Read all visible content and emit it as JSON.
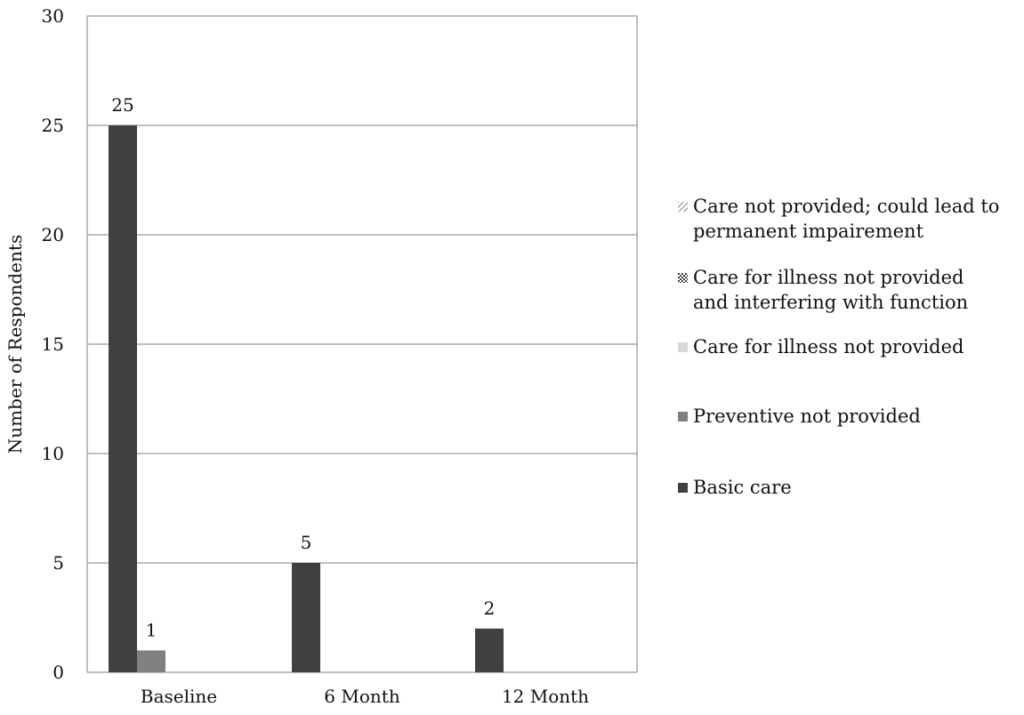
{
  "chart_data": {
    "type": "bar",
    "categories": [
      "Baseline",
      "6 Month",
      "12 Month"
    ],
    "series": [
      {
        "name": "Basic care",
        "values": [
          25,
          5,
          2
        ],
        "color": "#404040",
        "pattern": "solid"
      },
      {
        "name": "Preventive not provided",
        "values": [
          1,
          0,
          0
        ],
        "color": "#808080",
        "pattern": "solid"
      },
      {
        "name": "Care for illness not provided",
        "values": [
          0,
          0,
          0
        ],
        "color": "#d9d9d9",
        "pattern": "solid"
      },
      {
        "name": "Care for illness not provided and interfering with function",
        "values": [
          0,
          0,
          0
        ],
        "color": "#404040",
        "pattern": "checker"
      },
      {
        "name": "Care not provided; could lead to permanent impairement",
        "values": [
          0,
          0,
          0
        ],
        "color": "#808080",
        "pattern": "diagonal"
      }
    ],
    "data_labels": [
      {
        "series": 0,
        "category": 0,
        "text": "25"
      },
      {
        "series": 1,
        "category": 0,
        "text": "1"
      },
      {
        "series": 0,
        "category": 1,
        "text": "5"
      },
      {
        "series": 0,
        "category": 2,
        "text": "2"
      }
    ],
    "title": "",
    "xlabel": "",
    "ylabel": "Number of Respondents",
    "ylim": [
      0,
      30
    ],
    "yticks": [
      "0",
      "5",
      "10",
      "15",
      "20",
      "25",
      "30"
    ],
    "grid": true,
    "legend_position": "right"
  },
  "legend": {
    "items": [
      {
        "label_line1": "Care not provided; could lead to",
        "label_line2": "permanent impairement",
        "icon": "diagonal-hatch-swatch"
      },
      {
        "label_line1": "Care for illness not provided",
        "label_line2": "and interfering with function",
        "icon": "checker-swatch"
      },
      {
        "label_line1": "Care for illness not provided",
        "label_line2": "",
        "icon": "light-gray-swatch"
      },
      {
        "label_line1": "Preventive not provided",
        "label_line2": "",
        "icon": "gray-swatch"
      },
      {
        "label_line1": "Basic care",
        "label_line2": "",
        "icon": "dark-gray-swatch"
      }
    ]
  }
}
